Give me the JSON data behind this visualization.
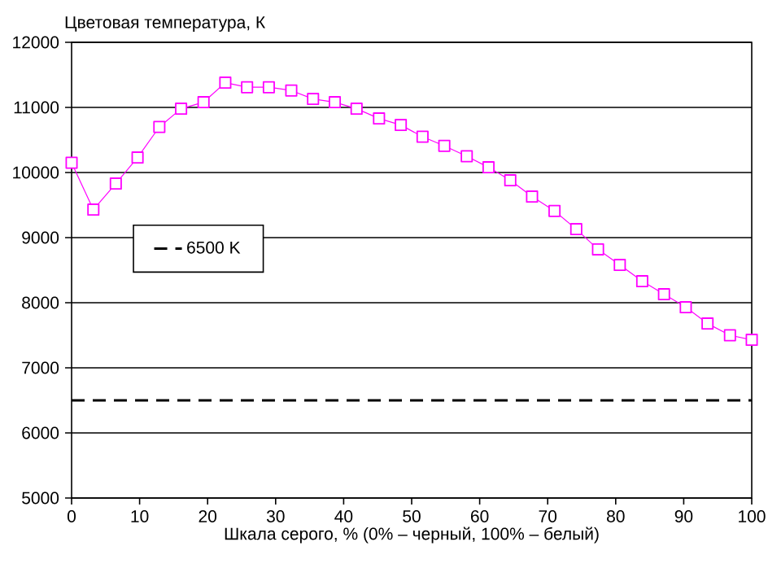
{
  "chart_data": {
    "type": "line",
    "ylabel": "Цветовая температура, К",
    "xlabel": "Шкала серого, % (0% – черный, 100% – белый)",
    "x": [
      0,
      3.2,
      6.5,
      9.7,
      12.9,
      16.1,
      19.4,
      22.6,
      25.8,
      29,
      32.3,
      35.5,
      38.7,
      41.9,
      45.2,
      48.4,
      51.6,
      54.8,
      58.1,
      61.3,
      64.5,
      67.7,
      71,
      74.2,
      77.4,
      80.6,
      83.9,
      87.1,
      90.3,
      93.5,
      96.8,
      100
    ],
    "series": [
      {
        "color": "#ff00ff",
        "values": [
          10150,
          9430,
          9830,
          10230,
          10700,
          10980,
          11080,
          11380,
          11310,
          11310,
          11260,
          11130,
          11080,
          10980,
          10830,
          10730,
          10550,
          10410,
          10250,
          10080,
          9880,
          9630,
          9410,
          9130,
          8820,
          8580,
          8330,
          8130,
          7930,
          7680,
          7500,
          7430
        ]
      }
    ],
    "ref_lines": [
      {
        "axis": "y",
        "value": 6500,
        "label": "6500 K",
        "color": "#000000",
        "line_style": "dashed"
      }
    ],
    "xlim": [
      0,
      100
    ],
    "xticks": [
      0,
      10,
      20,
      30,
      40,
      50,
      60,
      70,
      80,
      90,
      100
    ],
    "ylim": [
      5000,
      12000
    ],
    "yticks": [
      5000,
      6000,
      7000,
      8000,
      9000,
      10000,
      11000,
      12000
    ],
    "grid": "y",
    "legend": "left",
    "marker": "square",
    "line_style": "solid"
  }
}
